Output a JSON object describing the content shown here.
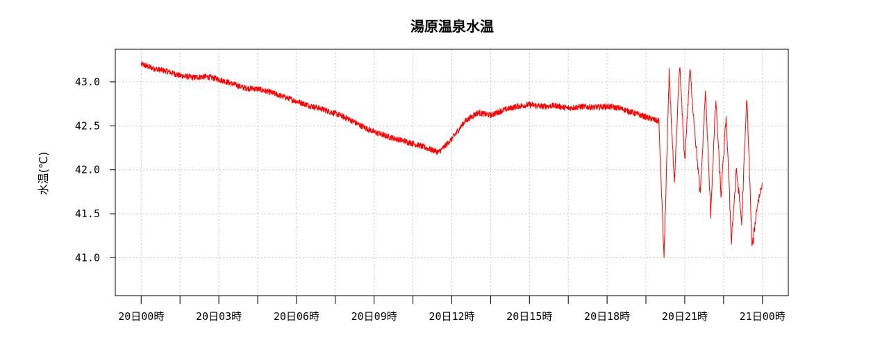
{
  "chart_data": {
    "type": "line",
    "title": "湯原温泉水温",
    "ylabel": "水温(℃)",
    "xlabel": "",
    "x_tick_labels": [
      "20日00時",
      "20日03時",
      "20日06時",
      "20日09時",
      "20日12時",
      "20日15時",
      "20日18時",
      "20日21時",
      "21日00時"
    ],
    "x_tick_hours": [
      0,
      3,
      6,
      9,
      12,
      15,
      18,
      21,
      24
    ],
    "x_range_hours": [
      -1,
      25.0
    ],
    "y_ticks": [
      41.0,
      41.5,
      42.0,
      42.5,
      43.0
    ],
    "y_tick_labels": [
      "41.0",
      "41.5",
      "42.0",
      "42.5",
      "43.0"
    ],
    "ylim": [
      40.57,
      43.37
    ],
    "grid": true,
    "series": [
      {
        "color": "#ff0000",
        "x_hours": [
          0,
          0.5,
          1,
          1.5,
          2,
          2.5,
          3,
          3.5,
          4,
          4.5,
          5,
          5.5,
          6,
          6.5,
          7,
          7.5,
          8,
          8.5,
          9,
          9.5,
          10,
          10.5,
          11,
          11.5,
          12,
          12.5,
          13,
          13.5,
          14,
          14.5,
          15,
          15.5,
          16,
          16.5,
          17,
          17.5,
          18,
          18.5,
          19,
          19.5,
          20,
          20.2,
          20.4,
          20.6,
          20.8,
          21,
          21.2,
          21.4,
          21.6,
          21.8,
          22,
          22.2,
          22.4,
          22.6,
          22.8,
          23,
          23.2,
          23.4,
          23.6,
          23.8,
          24
        ],
        "values": [
          43.2,
          43.15,
          43.12,
          43.07,
          43.05,
          43.06,
          43.03,
          42.98,
          42.93,
          42.92,
          42.88,
          42.83,
          42.78,
          42.73,
          42.69,
          42.64,
          42.58,
          42.5,
          42.43,
          42.38,
          42.34,
          42.3,
          42.25,
          42.2,
          42.35,
          42.55,
          42.65,
          42.62,
          42.68,
          42.72,
          42.74,
          42.72,
          42.73,
          42.7,
          42.72,
          42.71,
          42.72,
          42.7,
          42.65,
          42.6,
          42.55,
          41.0,
          43.1,
          41.8,
          43.2,
          42.1,
          43.15,
          42.4,
          41.7,
          42.9,
          41.5,
          42.8,
          41.7,
          42.6,
          41.2,
          42.0,
          41.4,
          42.85,
          41.1,
          41.6,
          41.85
        ]
      }
    ]
  }
}
